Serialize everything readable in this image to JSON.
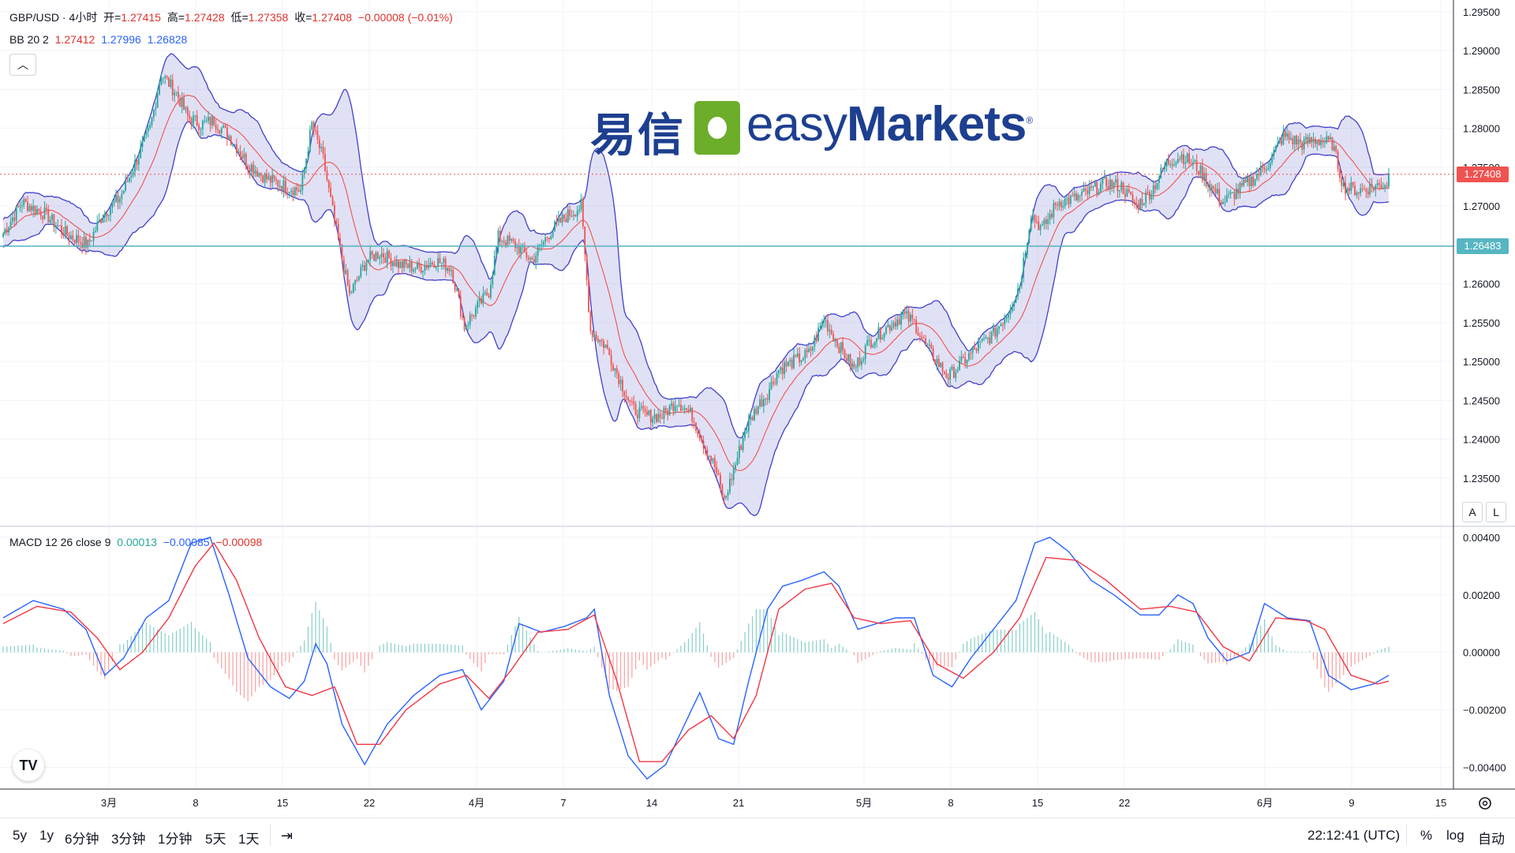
{
  "header": {
    "symbol": "GBP/USD · 4小时",
    "open_label": "开=",
    "open": "1.27415",
    "high_label": "高=",
    "high": "1.27428",
    "low_label": "低=",
    "low": "1.27358",
    "close_label": "收=",
    "close": "1.27408",
    "change": "−0.00008 (−0.01%)"
  },
  "bb_legend": {
    "label": "BB 20 2",
    "basis": "1.27412",
    "upper": "1.27996",
    "lower": "1.26828"
  },
  "macd_legend": {
    "label": "MACD 12 26 close 9",
    "hist": "0.00013",
    "macd": "−0.00085",
    "signal": "−0.00098"
  },
  "watermark": {
    "zh": "易信",
    "en_light": "easy",
    "en_bold": "Markets",
    "reg": "®"
  },
  "price_tags": {
    "last": "1.27408",
    "level": "1.26483"
  },
  "axis_buttons": {
    "auto": "A",
    "log": "L"
  },
  "bottom_bar": {
    "timeframes": [
      "5y",
      "1y",
      "6分钟",
      "3分钟",
      "1分钟",
      "5天",
      "1天"
    ],
    "time": "22:12:41 (UTC)",
    "percent": "%",
    "log": "log",
    "auto": "自动"
  },
  "colors": {
    "up": "#26a69a",
    "down": "#ef5350",
    "bb_band": "#4040cc",
    "bb_fill": "#9c9cdf",
    "basis": "#ef5350",
    "macd": "#2962ff",
    "signal": "#f23645",
    "hline": "#56b6c2"
  },
  "chart_data": [
    {
      "type": "candlestick",
      "title": "GBP/USD · 4小时",
      "x_ticks": [
        "3月",
        "8",
        "15",
        "22",
        "4月",
        "7",
        "14",
        "21",
        "5月",
        "8",
        "15",
        "22",
        "6月",
        "9",
        "15"
      ],
      "y_ticks": [
        "1.29500",
        "1.29000",
        "1.28500",
        "1.28000",
        "1.27500",
        "1.27000",
        "1.26500",
        "1.26000",
        "1.25500",
        "1.25000",
        "1.24500",
        "1.24000",
        "1.23500"
      ],
      "ylim": [
        1.229,
        1.2965
      ],
      "horizontal_line": 1.26483,
      "last_price": 1.27408,
      "indicator": "BB 20 2",
      "close_path": [
        [
          0,
          1.2665
        ],
        [
          10,
          1.2705
        ],
        [
          22,
          1.269
        ],
        [
          33,
          1.2665
        ],
        [
          45,
          1.265
        ],
        [
          53,
          1.269
        ],
        [
          62,
          1.271
        ],
        [
          71,
          1.276
        ],
        [
          78,
          1.28
        ],
        [
          84,
          1.287
        ],
        [
          92,
          1.2845
        ],
        [
          98,
          1.2815
        ],
        [
          105,
          1.2805
        ],
        [
          112,
          1.281
        ],
        [
          120,
          1.279
        ],
        [
          130,
          1.2755
        ],
        [
          140,
          1.2735
        ],
        [
          150,
          1.2725
        ],
        [
          158,
          1.272
        ],
        [
          164,
          1.2805
        ],
        [
          170,
          1.276
        ],
        [
          176,
          1.268
        ],
        [
          184,
          1.2585
        ],
        [
          193,
          1.263
        ],
        [
          200,
          1.264
        ],
        [
          210,
          1.2625
        ],
        [
          220,
          1.262
        ],
        [
          230,
          1.263
        ],
        [
          238,
          1.262
        ],
        [
          245,
          1.2545
        ],
        [
          252,
          1.257
        ],
        [
          258,
          1.259
        ],
        [
          263,
          1.266
        ],
        [
          272,
          1.265
        ],
        [
          281,
          1.263
        ],
        [
          290,
          1.2665
        ],
        [
          298,
          1.2685
        ],
        [
          307,
          1.27
        ],
        [
          312,
          1.254
        ],
        [
          320,
          1.252
        ],
        [
          327,
          1.248
        ],
        [
          334,
          1.244
        ],
        [
          342,
          1.243
        ],
        [
          350,
          1.243
        ],
        [
          358,
          1.245
        ],
        [
          366,
          1.243
        ],
        [
          372,
          1.2395
        ],
        [
          378,
          1.2365
        ],
        [
          383,
          1.232
        ],
        [
          388,
          1.236
        ],
        [
          394,
          1.241
        ],
        [
          400,
          1.244
        ],
        [
          406,
          1.246
        ],
        [
          412,
          1.249
        ],
        [
          420,
          1.25
        ],
        [
          428,
          1.251
        ],
        [
          436,
          1.2555
        ],
        [
          444,
          1.252
        ],
        [
          452,
          1.249
        ],
        [
          460,
          1.2525
        ],
        [
          470,
          1.2545
        ],
        [
          478,
          1.256
        ],
        [
          484,
          1.255
        ],
        [
          490,
          1.252
        ],
        [
          496,
          1.25
        ],
        [
          502,
          1.248
        ],
        [
          510,
          1.25
        ],
        [
          518,
          1.252
        ],
        [
          526,
          1.2535
        ],
        [
          534,
          1.2565
        ],
        [
          540,
          1.26
        ],
        [
          546,
          1.269
        ],
        [
          552,
          1.267
        ],
        [
          560,
          1.2705
        ],
        [
          570,
          1.271
        ],
        [
          578,
          1.272
        ],
        [
          586,
          1.273
        ],
        [
          594,
          1.2725
        ],
        [
          602,
          1.27
        ],
        [
          610,
          1.272
        ],
        [
          618,
          1.2755
        ],
        [
          626,
          1.2765
        ],
        [
          634,
          1.275
        ],
        [
          640,
          1.273
        ],
        [
          648,
          1.2705
        ],
        [
          656,
          1.272
        ],
        [
          664,
          1.2735
        ],
        [
          672,
          1.2755
        ],
        [
          680,
          1.279
        ],
        [
          690,
          1.278
        ],
        [
          698,
          1.2785
        ],
        [
          706,
          1.278
        ],
        [
          712,
          1.2725
        ],
        [
          720,
          1.272
        ],
        [
          728,
          1.2725
        ],
        [
          736,
          1.273
        ]
      ]
    },
    {
      "type": "macd",
      "title": "MACD 12 26 close 9",
      "y_ticks": [
        "0.00400",
        "0.00200",
        "0.00000",
        "−0.00200",
        "−0.00400"
      ],
      "ylim": [
        -0.0047,
        0.0043
      ],
      "macd_path": [
        [
          0,
          0.0012
        ],
        [
          16,
          0.0018
        ],
        [
          32,
          0.0015
        ],
        [
          44,
          0.0008
        ],
        [
          54,
          -0.0008
        ],
        [
          64,
          -0.0002
        ],
        [
          76,
          0.0012
        ],
        [
          88,
          0.0018
        ],
        [
          100,
          0.0038
        ],
        [
          110,
          0.004
        ],
        [
          120,
          0.002
        ],
        [
          130,
          -0.0002
        ],
        [
          142,
          -0.0012
        ],
        [
          152,
          -0.0016
        ],
        [
          160,
          -0.001
        ],
        [
          166,
          0.0003
        ],
        [
          172,
          -0.0004
        ],
        [
          180,
          -0.0025
        ],
        [
          192,
          -0.0039
        ],
        [
          204,
          -0.0025
        ],
        [
          218,
          -0.0015
        ],
        [
          232,
          -0.0008
        ],
        [
          244,
          -0.0006
        ],
        [
          254,
          -0.002
        ],
        [
          266,
          -0.001
        ],
        [
          274,
          0.001
        ],
        [
          286,
          0.0007
        ],
        [
          298,
          0.0009
        ],
        [
          310,
          0.0012
        ],
        [
          314,
          0.0015
        ],
        [
          322,
          -0.0015
        ],
        [
          332,
          -0.0036
        ],
        [
          342,
          -0.0044
        ],
        [
          352,
          -0.0039
        ],
        [
          362,
          -0.0025
        ],
        [
          370,
          -0.0014
        ],
        [
          380,
          -0.003
        ],
        [
          388,
          -0.0032
        ],
        [
          396,
          -0.001
        ],
        [
          406,
          0.0015
        ],
        [
          414,
          0.0023
        ],
        [
          424,
          0.0025
        ],
        [
          436,
          0.0028
        ],
        [
          444,
          0.0023
        ],
        [
          454,
          0.0008
        ],
        [
          464,
          0.001
        ],
        [
          474,
          0.0012
        ],
        [
          484,
          0.0012
        ],
        [
          494,
          -0.0008
        ],
        [
          504,
          -0.0012
        ],
        [
          514,
          -0.0002
        ],
        [
          526,
          0.0008
        ],
        [
          538,
          0.0018
        ],
        [
          548,
          0.0038
        ],
        [
          556,
          0.004
        ],
        [
          566,
          0.0035
        ],
        [
          578,
          0.0025
        ],
        [
          590,
          0.002
        ],
        [
          604,
          0.0013
        ],
        [
          614,
          0.0013
        ],
        [
          624,
          0.002
        ],
        [
          632,
          0.0017
        ],
        [
          640,
          0.0005
        ],
        [
          650,
          -0.0003
        ],
        [
          662,
          0.0
        ],
        [
          670,
          0.0017
        ],
        [
          682,
          0.0012
        ],
        [
          694,
          0.0011
        ],
        [
          704,
          -0.0008
        ],
        [
          716,
          -0.0013
        ],
        [
          728,
          -0.0011
        ],
        [
          736,
          -0.0008
        ]
      ],
      "signal_path": [
        [
          0,
          0.001
        ],
        [
          18,
          0.0016
        ],
        [
          36,
          0.0014
        ],
        [
          50,
          0.0005
        ],
        [
          62,
          -0.0006
        ],
        [
          74,
          0.0
        ],
        [
          88,
          0.0012
        ],
        [
          102,
          0.003
        ],
        [
          112,
          0.0038
        ],
        [
          124,
          0.0025
        ],
        [
          136,
          0.0005
        ],
        [
          150,
          -0.0012
        ],
        [
          164,
          -0.0015
        ],
        [
          176,
          -0.0012
        ],
        [
          188,
          -0.0032
        ],
        [
          200,
          -0.0032
        ],
        [
          214,
          -0.002
        ],
        [
          232,
          -0.0011
        ],
        [
          246,
          -0.0008
        ],
        [
          258,
          -0.0016
        ],
        [
          270,
          -0.0006
        ],
        [
          284,
          0.0007
        ],
        [
          300,
          0.0008
        ],
        [
          314,
          0.0013
        ],
        [
          326,
          -0.001
        ],
        [
          338,
          -0.0038
        ],
        [
          350,
          -0.0038
        ],
        [
          364,
          -0.0027
        ],
        [
          376,
          -0.0022
        ],
        [
          388,
          -0.003
        ],
        [
          400,
          -0.0015
        ],
        [
          412,
          0.0015
        ],
        [
          426,
          0.0022
        ],
        [
          440,
          0.0024
        ],
        [
          452,
          0.0012
        ],
        [
          466,
          0.001
        ],
        [
          482,
          0.0011
        ],
        [
          496,
          -0.0004
        ],
        [
          510,
          -0.0009
        ],
        [
          526,
          0.0
        ],
        [
          540,
          0.0012
        ],
        [
          554,
          0.0033
        ],
        [
          570,
          0.0032
        ],
        [
          586,
          0.0025
        ],
        [
          604,
          0.0015
        ],
        [
          620,
          0.0016
        ],
        [
          634,
          0.0014
        ],
        [
          648,
          0.0002
        ],
        [
          662,
          -0.0003
        ],
        [
          676,
          0.0012
        ],
        [
          692,
          0.0011
        ],
        [
          702,
          0.0008
        ],
        [
          716,
          -0.0008
        ],
        [
          730,
          -0.0011
        ],
        [
          736,
          -0.001
        ]
      ]
    }
  ]
}
